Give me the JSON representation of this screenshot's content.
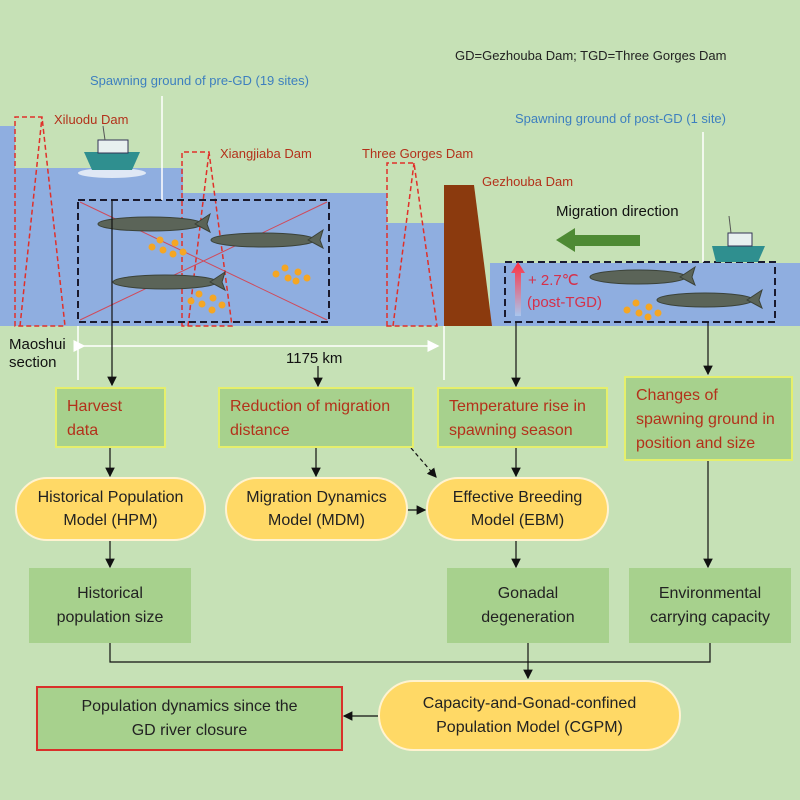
{
  "legend_note": "GD=Gezhouba Dam; TGD=Three Gorges Dam",
  "river": {
    "pre_gd_label": "Spawning ground of pre-GD (19 sites)",
    "post_gd_label": "Spawning ground of post-GD (1 site)",
    "dams": [
      "Xiluodu Dam",
      "Xiangjiaba Dam",
      "Three Gorges Dam",
      "Gezhouba Dam"
    ],
    "migration_label": "Migration direction",
    "temperature_line1": "+ 2.7℃",
    "temperature_line2": "(post-TGD)",
    "section_line1": "Maoshui",
    "section_line2": "section",
    "distance": "1175 km"
  },
  "inputs": {
    "harvest": [
      "Harvest",
      "data"
    ],
    "reduction": [
      "Reduction of migration",
      "distance"
    ],
    "temperature": [
      "Temperature rise in",
      "spawning season"
    ],
    "changes": [
      "Changes of",
      "spawning ground in",
      "position and size"
    ]
  },
  "models": {
    "hpm": [
      "Historical Population",
      "Model (HPM)"
    ],
    "mdm": [
      "Migration Dynamics",
      "Model (MDM)"
    ],
    "ebm": [
      "Effective Breeding",
      "Model (EBM)"
    ],
    "cgpm": [
      "Capacity-and-Gonad-confined",
      "Population Model (CGPM)"
    ]
  },
  "outputs": {
    "historical": [
      "Historical",
      "population size"
    ],
    "gonadal": [
      "Gonadal",
      "degeneration"
    ],
    "capacity": [
      "Environmental",
      "carrying capacity"
    ],
    "final": [
      "Population dynamics since the",
      "GD river closure"
    ]
  },
  "colors": {
    "background": "#c6e1b6",
    "water": "#8faee0",
    "box": "#a7d18d",
    "model": "#ffd966",
    "dam": "#8b3a0e",
    "label_red": "#b3311a",
    "label_blue": "#3d7fbf",
    "arrow_green": "#4e8a34"
  }
}
